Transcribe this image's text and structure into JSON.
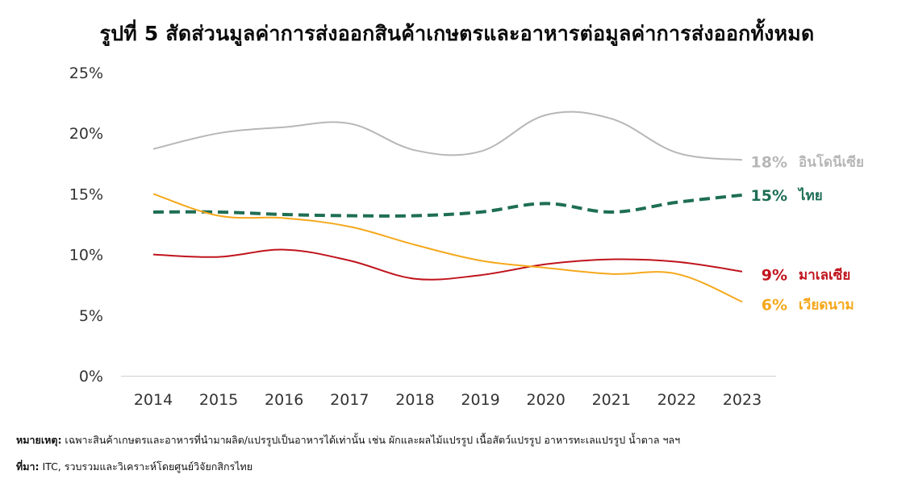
{
  "title": "รูปที่ 5 สัดส่วนมูลค่าการส่งออกสินค้าเกษตรและอาหารต่อมูลค่าการส่งออกทั้งหมด",
  "note": {
    "label": "หมายเหตุ:",
    "text": " เฉพาะสินค้าเกษตรและอาหารที่นำมาผลิต/แปรรูปเป็นอาหารได้เท่านั้น เช่น ผักและผลไม้แปรรูป เนื้อสัตว์แปรรูป อาหารทะเลแปรรูป น้ำตาล ฯลฯ"
  },
  "source": {
    "label": "ที่มา:",
    "text": " ITC, รวบรวมและวิเคราะห์โดยศูนย์วิจัยกสิกรไทย"
  },
  "chart_data": {
    "type": "line",
    "title": "รูปที่ 5 สัดส่วนมูลค่าการส่งออกสินค้าเกษตรและอาหารต่อมูลค่าการส่งออกทั้งหมด",
    "xlabel": "",
    "ylabel": "",
    "categories": [
      "2014",
      "2015",
      "2016",
      "2017",
      "2018",
      "2019",
      "2020",
      "2021",
      "2022",
      "2023"
    ],
    "ylim": [
      0,
      25
    ],
    "y_ticks": [
      "0%",
      "5%",
      "10%",
      "15%",
      "20%",
      "25%"
    ],
    "grid": false,
    "legend": "end-of-line labels (right)",
    "series": [
      {
        "name": "อินโดนีเซีย",
        "end_label": "18%",
        "color": "#b7b7b7",
        "dashed": false,
        "values": [
          18.7,
          20.0,
          20.5,
          20.8,
          18.6,
          18.5,
          21.5,
          21.2,
          18.4,
          17.8
        ]
      },
      {
        "name": "ไทย",
        "end_label": "15%",
        "color": "#1e6e55",
        "dashed": true,
        "values": [
          13.5,
          13.5,
          13.3,
          13.2,
          13.2,
          13.5,
          14.2,
          13.5,
          14.3,
          14.9
        ]
      },
      {
        "name": "มาเลเซีย",
        "end_label": "9%",
        "color": "#c0141d",
        "dashed": false,
        "values": [
          10.0,
          9.8,
          10.4,
          9.5,
          8.0,
          8.3,
          9.2,
          9.6,
          9.4,
          8.6
        ]
      },
      {
        "name": "เวียดนาม",
        "end_label": "6%",
        "color": "#f5a81c",
        "dashed": false,
        "values": [
          15.0,
          13.2,
          13.0,
          12.3,
          10.8,
          9.5,
          8.9,
          8.4,
          8.4,
          6.1
        ]
      }
    ]
  }
}
